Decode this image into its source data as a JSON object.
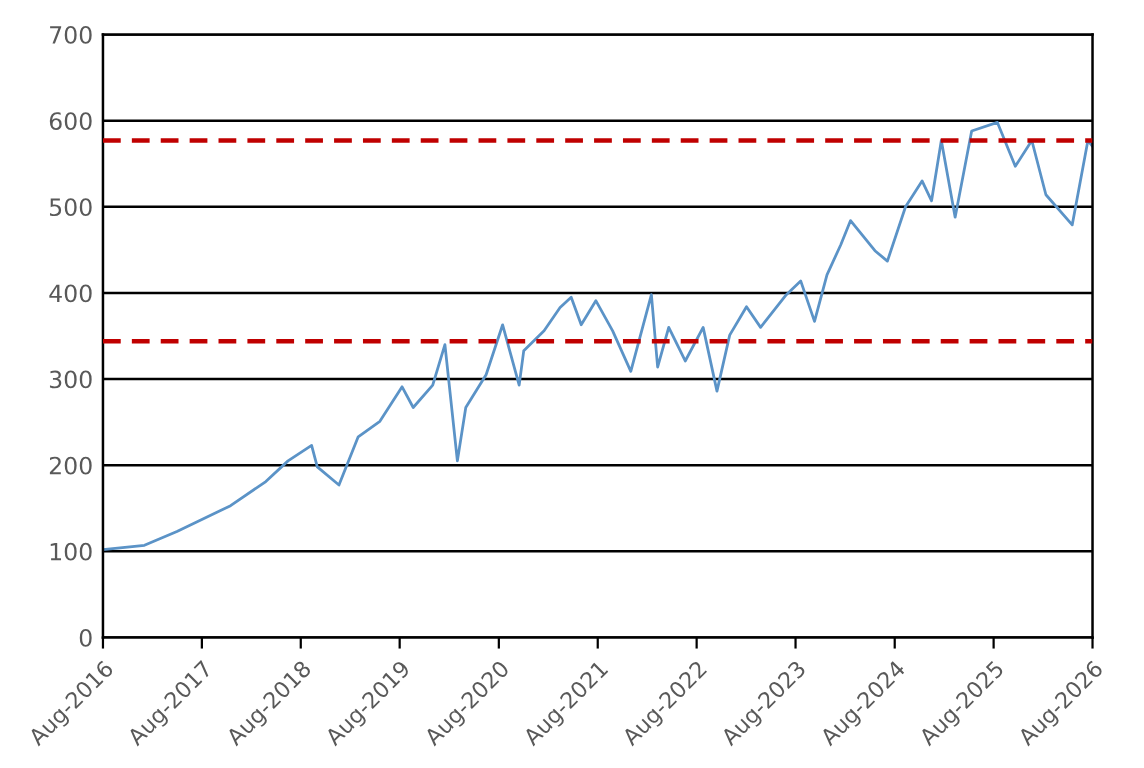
{
  "chart_data": {
    "type": "line",
    "x": [
      "2016-08-01",
      "2017-01-01",
      "2017-05-01",
      "2017-11-15",
      "2018-03-25",
      "2018-06-15",
      "2018-09-10",
      "2018-10-01",
      "2018-12-20",
      "2019-03-01",
      "2019-05-20",
      "2019-08-10",
      "2019-09-20",
      "2019-12-01",
      "2020-01-15",
      "2020-03-01",
      "2020-04-01",
      "2020-06-15",
      "2020-08-15",
      "2020-10-15",
      "2020-11-01",
      "2021-01-15",
      "2021-03-15",
      "2021-04-25",
      "2021-06-01",
      "2021-07-25",
      "2021-09-25",
      "2021-12-01",
      "2022-02-15",
      "2022-03-10",
      "2022-04-20",
      "2022-06-20",
      "2022-08-25",
      "2022-10-15",
      "2022-12-01",
      "2023-02-01",
      "2023-03-25",
      "2023-06-28",
      "2023-08-20",
      "2023-10-10",
      "2023-11-25",
      "2024-01-15",
      "2024-02-20",
      "2024-05-20",
      "2024-07-05",
      "2024-09-10",
      "2024-11-10",
      "2024-12-15",
      "2025-01-20",
      "2025-03-12",
      "2025-05-12",
      "2025-08-15",
      "2025-10-20",
      "2025-12-20",
      "2026-02-10",
      "2026-05-18",
      "2026-07-15",
      "2026-08-01"
    ],
    "series": [
      {
        "color": "#5b93c7",
        "values": [
          102,
          107,
          123,
          153,
          181,
          205,
          223,
          198,
          177,
          233,
          251,
          291,
          267,
          293,
          340,
          205,
          267,
          305,
          363,
          293,
          333,
          356,
          383,
          395,
          363,
          391,
          356,
          309,
          398,
          314,
          360,
          321,
          360,
          286,
          351,
          384,
          360,
          398,
          414,
          367,
          421,
          456,
          484,
          449,
          437,
          500,
          530,
          507,
          577,
          488,
          588,
          598,
          547,
          577,
          514,
          479,
          577,
          570
        ]
      }
    ],
    "xlim": [
      "2016-08-01",
      "2026-08-01"
    ],
    "xticks": [
      {
        "value": "2016-08-01",
        "label": "Aug-2016"
      },
      {
        "value": "2017-08-01",
        "label": "Aug-2017"
      },
      {
        "value": "2018-08-01",
        "label": "Aug-2018"
      },
      {
        "value": "2019-08-01",
        "label": "Aug-2019"
      },
      {
        "value": "2020-08-01",
        "label": "Aug-2020"
      },
      {
        "value": "2021-08-01",
        "label": "Aug-2021"
      },
      {
        "value": "2022-08-01",
        "label": "Aug-2022"
      },
      {
        "value": "2023-08-01",
        "label": "Aug-2023"
      },
      {
        "value": "2024-08-01",
        "label": "Aug-2024"
      },
      {
        "value": "2025-08-01",
        "label": "Aug-2025"
      },
      {
        "value": "2026-08-01",
        "label": "Aug-2026"
      }
    ],
    "ylim": [
      0,
      700
    ],
    "yticks": [
      0,
      100,
      200,
      300,
      400,
      500,
      600,
      700
    ],
    "grid": "y",
    "ref_lines": [
      {
        "axis": "y",
        "value": 577,
        "color": "#c00000",
        "line_style": "dashed"
      },
      {
        "axis": "y",
        "value": 344,
        "color": "#c00000",
        "line_style": "dashed"
      }
    ]
  }
}
